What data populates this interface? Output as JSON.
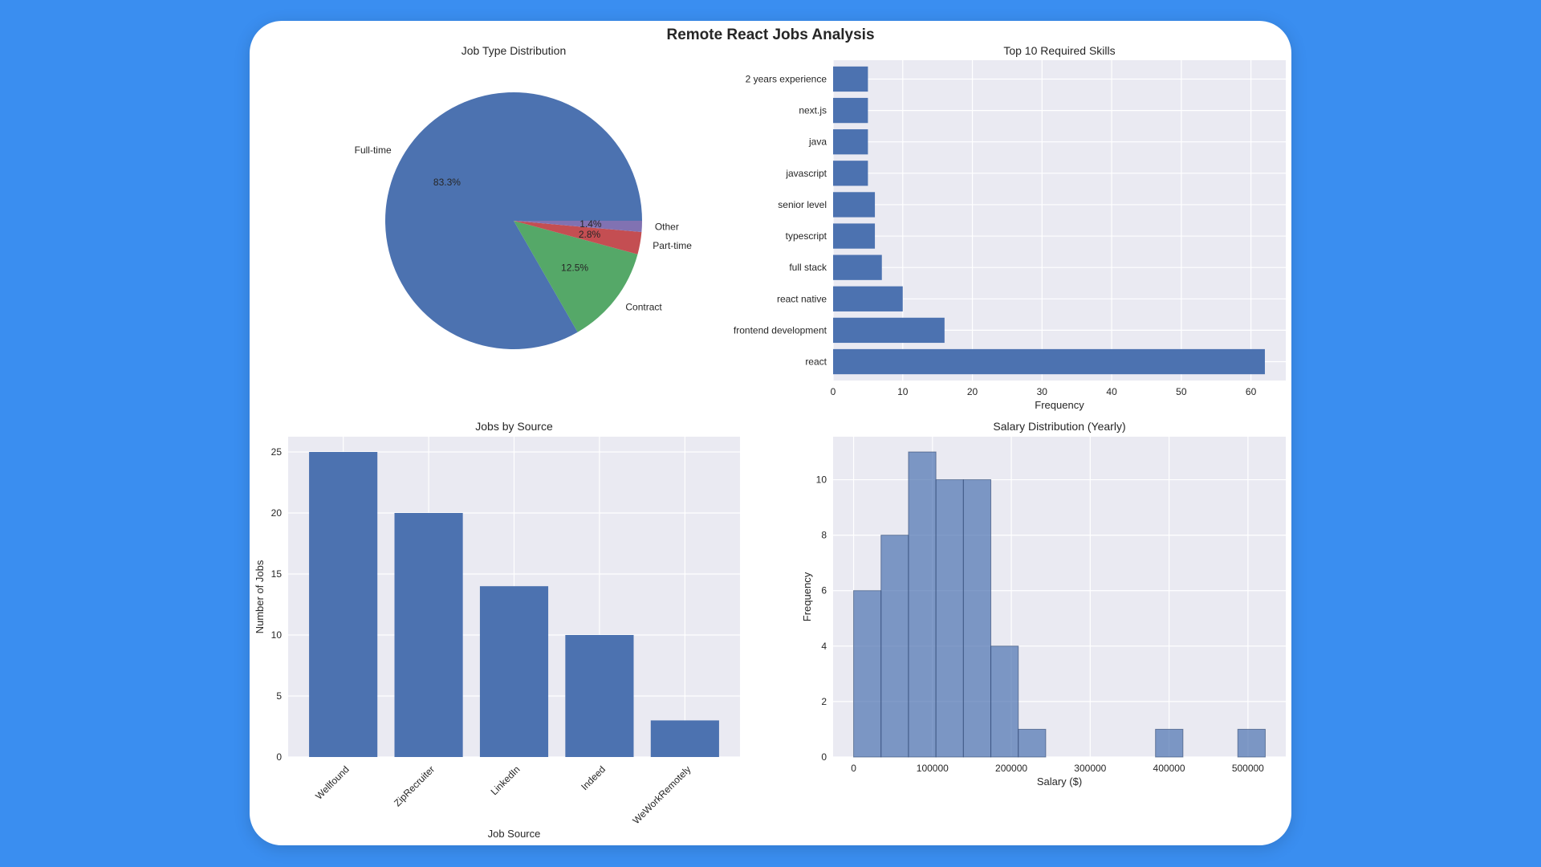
{
  "figure_title": "Remote React Jobs Analysis",
  "colors": {
    "background": "#3a8ef0",
    "axes_bg": "#EAEAF2",
    "bar": "#4C72B0",
    "grid": "#ffffff"
  },
  "chart_data": [
    {
      "type": "pie",
      "title": "Job Type Distribution",
      "labels": [
        "Full-time",
        "Contract",
        "Part-time",
        "Other"
      ],
      "values": [
        83.3,
        12.5,
        2.8,
        1.4
      ],
      "autopct": [
        "83.3%",
        "12.5%",
        "2.8%",
        "1.4%"
      ],
      "colors": [
        "#4C72B0",
        "#55A868",
        "#C44E52",
        "#8172B2"
      ],
      "start_angle": 0,
      "direction": "counterclockwise"
    },
    {
      "type": "bar",
      "orientation": "horizontal",
      "title": "Top 10 Required Skills",
      "xlabel": "Frequency",
      "ylabel": "",
      "categories": [
        "react",
        "frontend development",
        "react native",
        "full stack",
        "typescript",
        "senior level",
        "javascript",
        "java",
        "next.js",
        "2 years experience"
      ],
      "values": [
        62,
        16,
        10,
        7,
        6,
        6,
        5,
        5,
        5,
        5
      ],
      "xlim": [
        0,
        65
      ],
      "xticks": [
        0,
        10,
        20,
        30,
        40,
        50,
        60
      ],
      "grid": true
    },
    {
      "type": "bar",
      "title": "Jobs by Source",
      "xlabel": "Job Source",
      "ylabel": "Number of Jobs",
      "categories": [
        "Wellfound",
        "ZipRecruiter",
        "LinkedIn",
        "Indeed",
        "WeWorkRemotely"
      ],
      "values": [
        25,
        20,
        14,
        10,
        3
      ],
      "ylim": [
        0,
        26.25
      ],
      "yticks": [
        0,
        5,
        10,
        15,
        20,
        25
      ],
      "xtick_rotation": 45,
      "grid": true
    },
    {
      "type": "bar",
      "subtype": "histogram",
      "title": "Salary Distribution (Yearly)",
      "xlabel": "Salary ($)",
      "ylabel": "Frequency",
      "bin_edges": [
        0,
        34800,
        69600,
        104400,
        139200,
        174000,
        208800,
        243600,
        278400,
        313200,
        348000,
        382800,
        417600,
        452400,
        487200,
        522000
      ],
      "counts": [
        6,
        8,
        11,
        10,
        10,
        4,
        1,
        0,
        0,
        0,
        0,
        1,
        0,
        0,
        1
      ],
      "xlim": [
        -26000,
        548000
      ],
      "ylim": [
        0,
        11.55
      ],
      "xticks": [
        0,
        100000,
        200000,
        300000,
        400000,
        500000
      ],
      "yticks": [
        0,
        2,
        4,
        6,
        8,
        10
      ],
      "grid": true
    }
  ]
}
